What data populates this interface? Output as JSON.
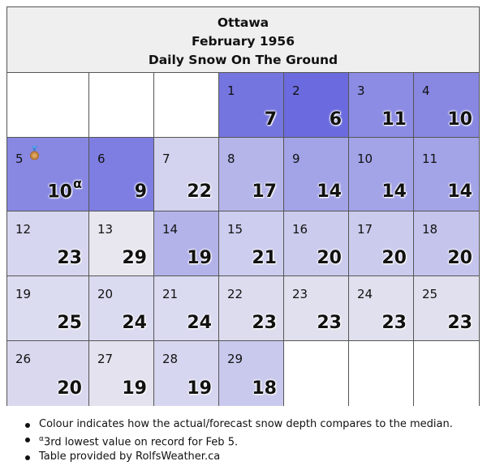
{
  "header": {
    "city": "Ottawa",
    "month": "February 1956",
    "subtitle": "Daily Snow On The Ground"
  },
  "cells": [
    {
      "day": "",
      "value": "",
      "sup": "",
      "color": "#ffffff"
    },
    {
      "day": "",
      "value": "",
      "sup": "",
      "color": "#ffffff"
    },
    {
      "day": "",
      "value": "",
      "sup": "",
      "color": "#ffffff"
    },
    {
      "day": "1",
      "value": "7",
      "sup": "",
      "color": "#7575e0"
    },
    {
      "day": "2",
      "value": "6",
      "sup": "",
      "color": "#6b6bdf"
    },
    {
      "day": "3",
      "value": "11",
      "sup": "",
      "color": "#8c8ce4"
    },
    {
      "day": "4",
      "value": "10",
      "sup": "",
      "color": "#8888e3"
    },
    {
      "day": "5",
      "value": "10",
      "sup": "α",
      "color": "#8888e3",
      "medal": true
    },
    {
      "day": "6",
      "value": "9",
      "sup": "",
      "color": "#7e7ee2"
    },
    {
      "day": "7",
      "value": "22",
      "sup": "",
      "color": "#d3d3ef"
    },
    {
      "day": "8",
      "value": "17",
      "sup": "",
      "color": "#b5b5ea"
    },
    {
      "day": "9",
      "value": "14",
      "sup": "",
      "color": "#a3a3e7"
    },
    {
      "day": "10",
      "value": "14",
      "sup": "",
      "color": "#a3a3e7"
    },
    {
      "day": "11",
      "value": "14",
      "sup": "",
      "color": "#a3a3e7"
    },
    {
      "day": "12",
      "value": "23",
      "sup": "",
      "color": "#d6d6f0"
    },
    {
      "day": "13",
      "value": "29",
      "sup": "",
      "color": "#e8e6ee"
    },
    {
      "day": "14",
      "value": "19",
      "sup": "",
      "color": "#b3b3ea"
    },
    {
      "day": "15",
      "value": "21",
      "sup": "",
      "color": "#cdcdef"
    },
    {
      "day": "16",
      "value": "20",
      "sup": "",
      "color": "#cbcbee"
    },
    {
      "day": "17",
      "value": "20",
      "sup": "",
      "color": "#cbcbee"
    },
    {
      "day": "18",
      "value": "20",
      "sup": "",
      "color": "#c4c4ed"
    },
    {
      "day": "19",
      "value": "25",
      "sup": "",
      "color": "#dcdcf1"
    },
    {
      "day": "20",
      "value": "24",
      "sup": "",
      "color": "#dadaf1"
    },
    {
      "day": "21",
      "value": "24",
      "sup": "",
      "color": "#dadaf1"
    },
    {
      "day": "22",
      "value": "23",
      "sup": "",
      "color": "#dddcef"
    },
    {
      "day": "23",
      "value": "23",
      "sup": "",
      "color": "#e1e0ee"
    },
    {
      "day": "24",
      "value": "23",
      "sup": "",
      "color": "#e1e0ee"
    },
    {
      "day": "25",
      "value": "23",
      "sup": "",
      "color": "#e1e0ee"
    },
    {
      "day": "26",
      "value": "20",
      "sup": "",
      "color": "#d9d8ef"
    },
    {
      "day": "27",
      "value": "19",
      "sup": "",
      "color": "#e3e2ee"
    },
    {
      "day": "28",
      "value": "19",
      "sup": "",
      "color": "#d6d6f0"
    },
    {
      "day": "29",
      "value": "18",
      "sup": "",
      "color": "#c9c9ee"
    },
    {
      "day": "",
      "value": "",
      "sup": "",
      "color": "#ffffff"
    },
    {
      "day": "",
      "value": "",
      "sup": "",
      "color": "#ffffff"
    },
    {
      "day": "",
      "value": "",
      "sup": "",
      "color": "#ffffff"
    }
  ],
  "notes": {
    "colour": "Colour indicates how the actual/forecast snow depth compares to the median.",
    "alpha_mark": "α",
    "alpha_text": "3rd lowest value on record for Feb 5.",
    "provider": "Table provided by RolfsWeather.ca"
  }
}
